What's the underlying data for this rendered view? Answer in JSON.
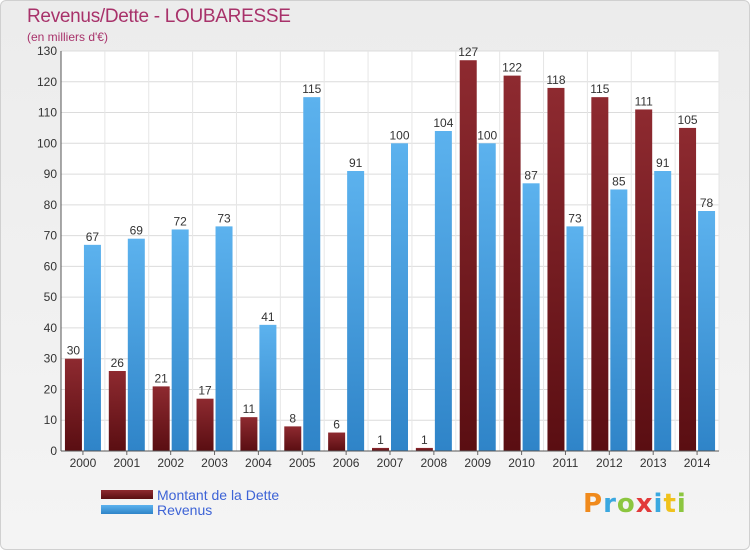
{
  "title": "Revenus/Dette - LOUBARESSE",
  "subtitle": "(en milliers d'€)",
  "logo": {
    "text": "Proxiti",
    "letters": [
      {
        "ch": "P",
        "color": "#f08a1c"
      },
      {
        "ch": "r",
        "color": "#3aa8e0"
      },
      {
        "ch": "o",
        "color": "#8cc63f"
      },
      {
        "ch": "x",
        "color": "#e23a3a"
      },
      {
        "ch": "i",
        "color": "#3aa8e0"
      },
      {
        "ch": "t",
        "color": "#f0c21c"
      },
      {
        "ch": "i",
        "color": "#8cc63f"
      }
    ]
  },
  "chart_data": {
    "type": "bar",
    "categories": [
      "2000",
      "2001",
      "2002",
      "2003",
      "2004",
      "2005",
      "2006",
      "2007",
      "2008",
      "2009",
      "2010",
      "2011",
      "2012",
      "2013",
      "2014"
    ],
    "series": [
      {
        "name": "Montant de la Dette",
        "color": "#7a1e24",
        "values": [
          30,
          26,
          21,
          17,
          11,
          8,
          6,
          1,
          1,
          127,
          122,
          118,
          115,
          111,
          105
        ]
      },
      {
        "name": "Revenus",
        "color": "#4aa3e6",
        "values": [
          67,
          69,
          72,
          73,
          41,
          115,
          91,
          100,
          104,
          100,
          87,
          73,
          85,
          91,
          78
        ]
      }
    ],
    "ylim": [
      0,
      130
    ],
    "yticks": [
      0,
      10,
      20,
      30,
      40,
      50,
      60,
      70,
      80,
      90,
      100,
      110,
      120,
      130
    ],
    "grid": true,
    "legend_position": "bottom-left"
  }
}
